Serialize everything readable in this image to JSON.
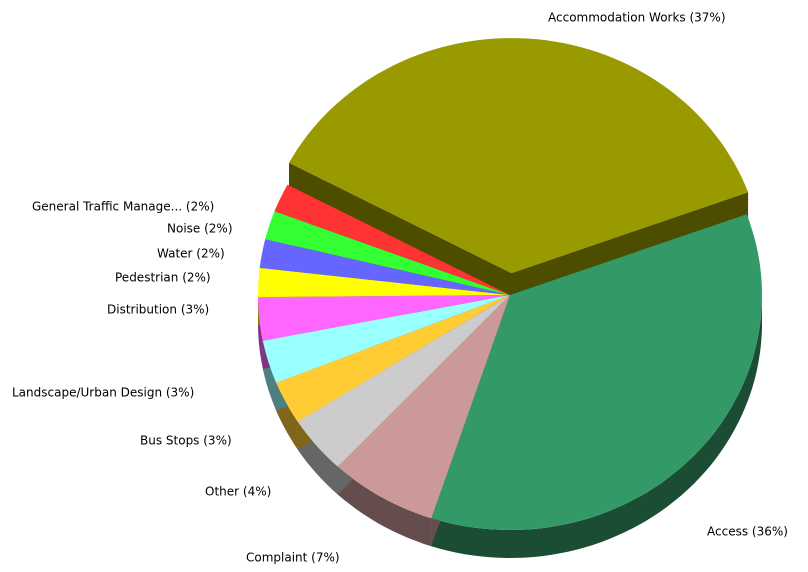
{
  "chart_data": {
    "type": "pie",
    "labels": [
      "Accommodation Works (37%)",
      "Access (36%)",
      "Complaint (7%)",
      "Other (4%)",
      "Bus Stops (3%)",
      "Landscape/Urban Design (3%)",
      "Distribution (3%)",
      "Pedestrian (2%)",
      "Water (2%)",
      "Noise (2%)",
      "General Traffic Manage... (2%)"
    ],
    "values": [
      37,
      36,
      7,
      4,
      3,
      3,
      3,
      2,
      2,
      2,
      2
    ],
    "colors": [
      "#999900",
      "#339966",
      "#cc9999",
      "#cccccc",
      "#ffcc33",
      "#99ffff",
      "#ff66ff",
      "#ffff00",
      "#6666ff",
      "#33ff33",
      "#ff3333"
    ]
  }
}
